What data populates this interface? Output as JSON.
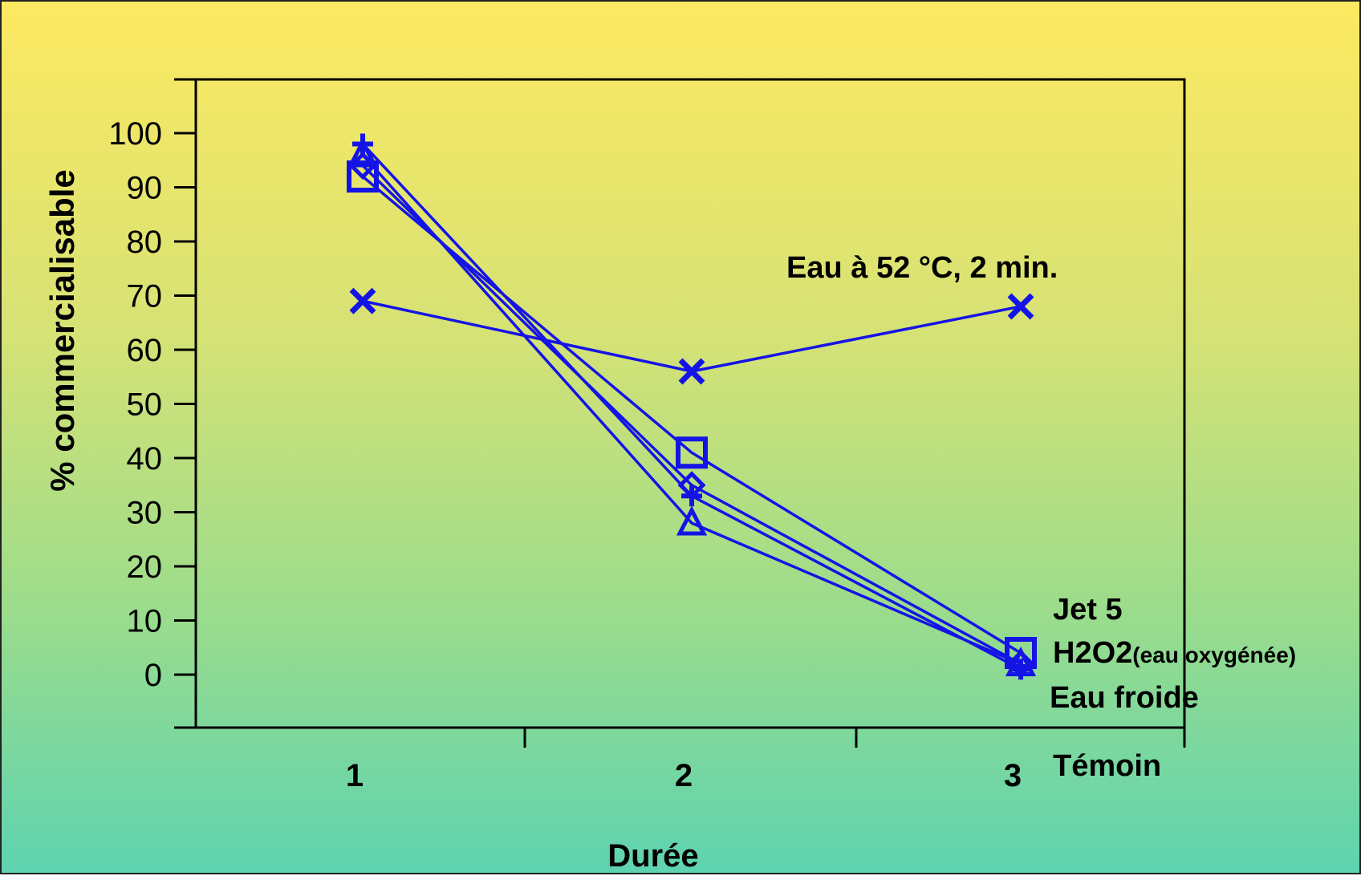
{
  "chart_data": {
    "type": "line",
    "xlabel": "Durée",
    "ylabel": "% commercialisable",
    "x": [
      1,
      2,
      3
    ],
    "ylim": [
      -10,
      110
    ],
    "yticks": [
      0,
      10,
      20,
      30,
      40,
      50,
      60,
      70,
      80,
      90,
      100
    ],
    "xticks": [
      "1",
      "2",
      "3"
    ],
    "line_color": "#1414e6",
    "series": [
      {
        "name": "Eau à 52 °C, 2 min.",
        "marker": "x",
        "values": [
          69,
          56,
          68
        ]
      },
      {
        "name": "Jet 5",
        "marker": "square",
        "values": [
          92,
          41,
          4
        ]
      },
      {
        "name": "Eau froide",
        "marker": "diamond",
        "values": [
          94,
          35,
          2
        ]
      },
      {
        "name": "Témoin",
        "marker": "triangle",
        "values": [
          96,
          28,
          2
        ]
      },
      {
        "marker": "plus",
        "values": [
          98,
          33,
          1
        ]
      }
    ],
    "annotations": {
      "eau52": "Eau à 52 °C, 2 min.",
      "jet5": "Jet 5",
      "h2o2_main": "H2O2",
      "h2o2_sub": "(eau oxygénée)",
      "eau_froide": "Eau froide",
      "temoin": "Témoin"
    }
  }
}
